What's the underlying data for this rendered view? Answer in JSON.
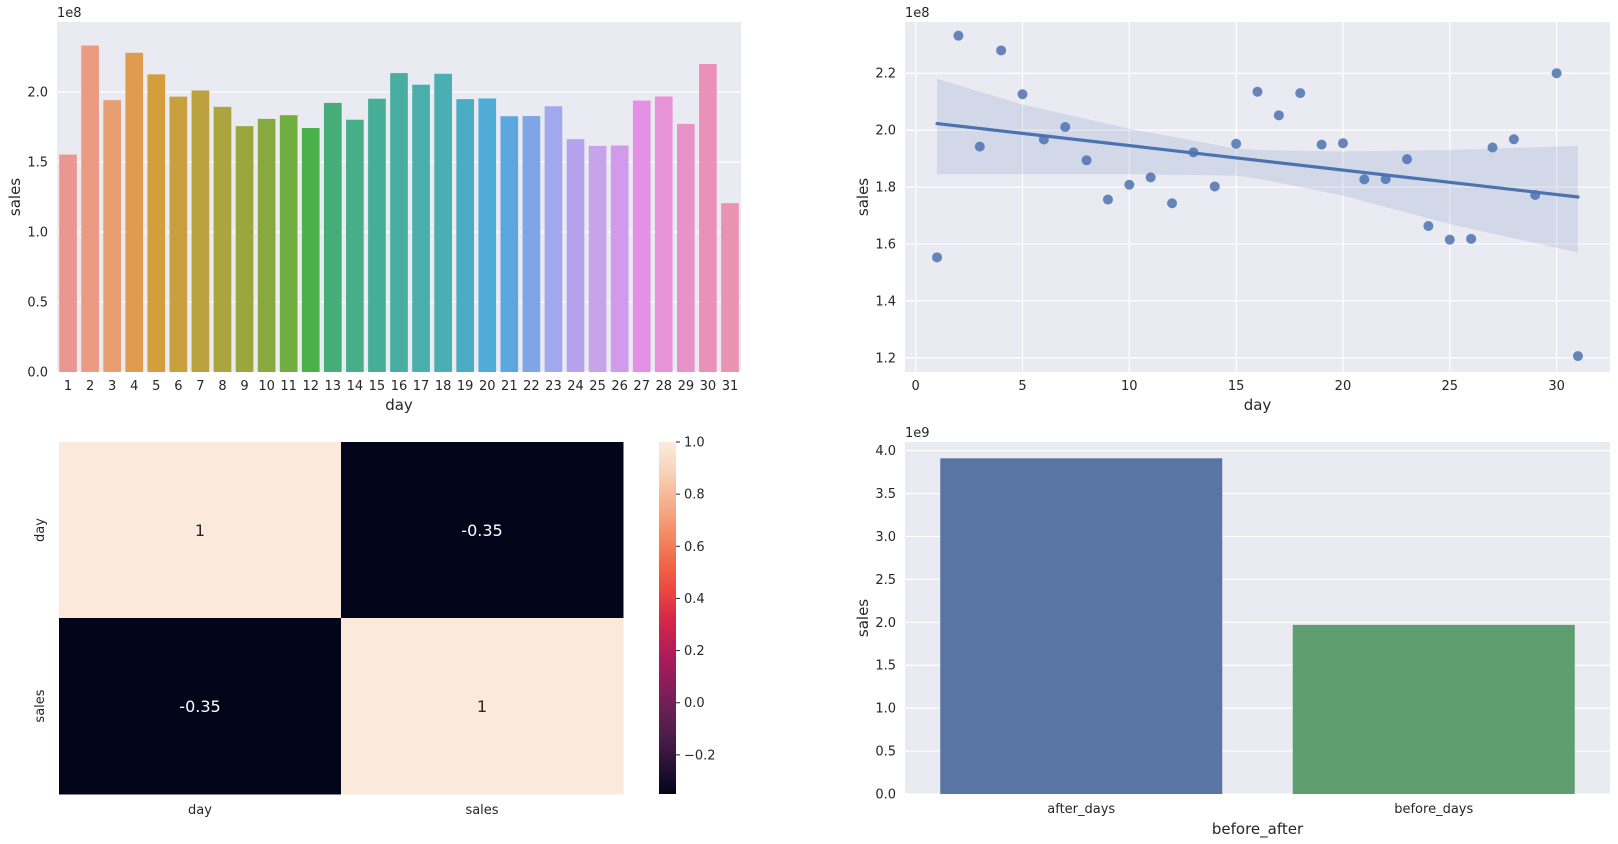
{
  "chart_data": [
    {
      "type": "bar",
      "panel": "top-left",
      "xlabel": "day",
      "ylabel": "sales",
      "offset_text": "1e8",
      "scale": 100000000,
      "categories": [
        "1",
        "2",
        "3",
        "4",
        "5",
        "6",
        "7",
        "8",
        "9",
        "10",
        "11",
        "12",
        "13",
        "14",
        "15",
        "16",
        "17",
        "18",
        "19",
        "20",
        "21",
        "22",
        "23",
        "24",
        "25",
        "26",
        "27",
        "28",
        "29",
        "30",
        "31"
      ],
      "values": [
        155300000,
        233200000,
        194200000,
        228000000,
        212600000,
        196700000,
        201100000,
        189400000,
        175600000,
        180800000,
        183400000,
        174300000,
        192200000,
        180200000,
        195200000,
        213500000,
        205200000,
        213000000,
        194900000,
        195400000,
        182700000,
        182800000,
        189800000,
        166300000,
        161500000,
        161800000,
        193900000,
        196800000,
        177200000,
        220000000,
        120600000
      ],
      "colors": [
        "#ea9691",
        "#ec9a84",
        "#e79f72",
        "#df9c50",
        "#d49d3e",
        "#c8a03e",
        "#bca23f",
        "#aca43e",
        "#9ba63e",
        "#88a93f",
        "#6fae3f",
        "#4ab04a",
        "#44ad78",
        "#47ae8a",
        "#46ad96",
        "#48aea2",
        "#4aaeab",
        "#4aaeb5",
        "#4badc3",
        "#4eacd6",
        "#5ca7e0",
        "#7ea5e5",
        "#a2a8ed",
        "#b4a3ec",
        "#c6a4ea",
        "#d19aea",
        "#e491e5",
        "#e693d8",
        "#e893c7",
        "#e991b8",
        "#e993b1"
      ],
      "ylim": [
        0,
        250000000
      ],
      "yticks": [
        0,
        50000000,
        100000000,
        150000000,
        200000000
      ],
      "ytick_labels": [
        "0.0",
        "0.5",
        "1.0",
        "1.5",
        "2.0"
      ],
      "grid": true
    },
    {
      "type": "scatter",
      "panel": "top-right",
      "subtype": "regression plot with confidence band",
      "xlabel": "day",
      "ylabel": "sales",
      "offset_text": "1e8",
      "scale": 100000000,
      "x": [
        1,
        2,
        3,
        4,
        5,
        6,
        7,
        8,
        9,
        10,
        11,
        12,
        13,
        14,
        15,
        16,
        17,
        18,
        19,
        20,
        21,
        22,
        23,
        24,
        25,
        26,
        27,
        28,
        29,
        30,
        31
      ],
      "y": [
        155300000,
        233200000,
        194200000,
        228000000,
        212600000,
        196700000,
        201100000,
        189400000,
        175600000,
        180800000,
        183400000,
        174300000,
        192200000,
        180200000,
        195200000,
        213500000,
        205200000,
        213000000,
        194900000,
        195400000,
        182700000,
        182800000,
        189800000,
        166300000,
        161500000,
        161800000,
        193900000,
        196800000,
        177200000,
        220000000,
        120600000
      ],
      "fit_line": {
        "x": [
          1,
          31
        ],
        "y": [
          202300000,
          176500000
        ]
      },
      "confidence_band": {
        "x": [
          1,
          5,
          10,
          15,
          16,
          20,
          25,
          31
        ],
        "upper": [
          218000000,
          209000000,
          200500000,
          193500000,
          193000000,
          192500000,
          193000000,
          194500000
        ],
        "lower": [
          184500000,
          184500000,
          184500000,
          184000000,
          183000000,
          177000000,
          167000000,
          157000000
        ]
      },
      "point_color": "#4c72b0",
      "line_color": "#4c72b0",
      "xlim": [
        -0.5,
        32.5
      ],
      "ylim": [
        115000000,
        238000000
      ],
      "xticks": [
        0,
        5,
        10,
        15,
        20,
        25,
        30
      ],
      "xtick_labels": [
        "0",
        "5",
        "10",
        "15",
        "20",
        "25",
        "30"
      ],
      "yticks": [
        120000000,
        140000000,
        160000000,
        180000000,
        200000000,
        220000000
      ],
      "ytick_labels": [
        "1.2",
        "1.4",
        "1.6",
        "1.8",
        "2.0",
        "2.2"
      ],
      "grid": true
    },
    {
      "type": "heatmap",
      "panel": "bottom-left",
      "row_labels": [
        "day",
        "sales"
      ],
      "col_labels": [
        "day",
        "sales"
      ],
      "values": [
        [
          1,
          -0.35
        ],
        [
          -0.35,
          1
        ]
      ],
      "annotations": [
        [
          "1",
          "-0.35"
        ],
        [
          "-0.35",
          "1"
        ]
      ],
      "cell_colors": [
        [
          "#fbeadc",
          "#03051a"
        ],
        [
          "#03051a",
          "#fbeadc"
        ]
      ],
      "annotation_colors": [
        [
          "#262626",
          "#ffffff"
        ],
        [
          "#ffffff",
          "#262626"
        ]
      ],
      "colorbar": {
        "vmin": -0.35,
        "vmax": 1.0,
        "ticks": [
          -0.2,
          0.0,
          0.2,
          0.4,
          0.6,
          0.8,
          1.0
        ],
        "tick_labels": [
          "−0.2",
          "0.0",
          "0.2",
          "0.4",
          "0.6",
          "0.8",
          "1.0"
        ],
        "colormap": "rocket",
        "stops": [
          "#03051a",
          "#2b1137",
          "#4c1d4b",
          "#6e1f57",
          "#931c5b",
          "#b81d56",
          "#d8284a",
          "#ec4a3f",
          "#f26b4a",
          "#f5906a",
          "#f6b290",
          "#f8d3b9",
          "#faebdd"
        ]
      }
    },
    {
      "type": "bar",
      "panel": "bottom-right",
      "xlabel": "before_after",
      "ylabel": "sales",
      "offset_text": "1e9",
      "scale": 1000000000,
      "categories": [
        "after_days",
        "before_days"
      ],
      "values": [
        3910000000,
        1970000000
      ],
      "colors": [
        "#5975a4",
        "#5f9e6e"
      ],
      "ylim": [
        0,
        4100000000
      ],
      "yticks": [
        0,
        500000000,
        1000000000,
        1500000000,
        2000000000,
        2500000000,
        3000000000,
        3500000000,
        4000000000
      ],
      "ytick_labels": [
        "0.0",
        "0.5",
        "1.0",
        "1.5",
        "2.0",
        "2.5",
        "3.0",
        "3.5",
        "4.0"
      ],
      "grid": true
    }
  ]
}
